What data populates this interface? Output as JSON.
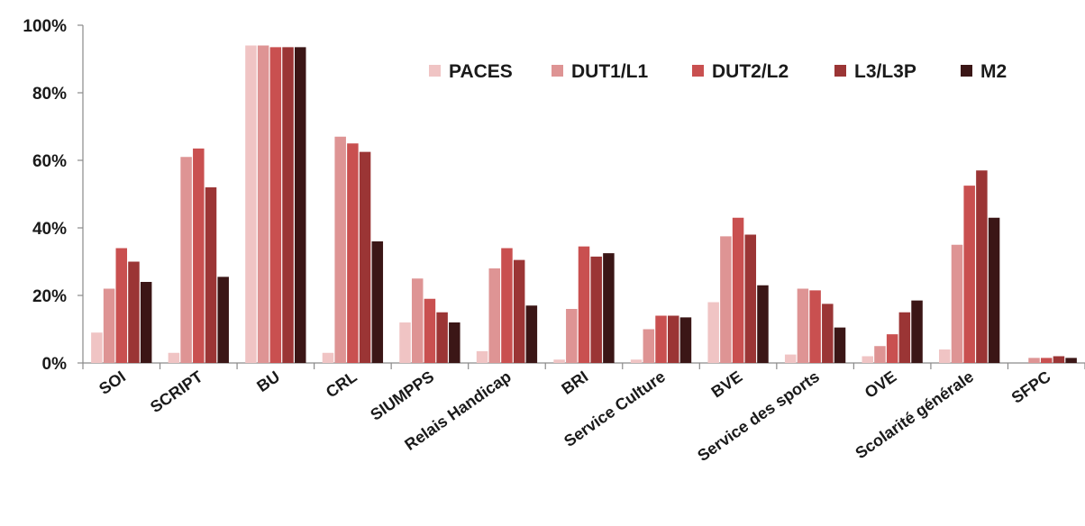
{
  "chart_data": {
    "type": "bar",
    "categories": [
      "SOI",
      "SCRIPT",
      "BU",
      "CRL",
      "SIUMPPS",
      "Relais Handicap",
      "BRI",
      "Service Culture",
      "BVE",
      "Service des sports",
      "OVE",
      "Scolarité générale",
      "SFPC"
    ],
    "series": [
      {
        "name": "PACES",
        "color": "#f0c4c4",
        "values": [
          9,
          3,
          94,
          3,
          12,
          3.5,
          1,
          1,
          18,
          2.5,
          2,
          4,
          0
        ]
      },
      {
        "name": "DUT1/L1",
        "color": "#de9494",
        "values": [
          22,
          61,
          94,
          67,
          25,
          28,
          16,
          10,
          37.5,
          22,
          5,
          35,
          1.5
        ]
      },
      {
        "name": "DUT2/L2",
        "color": "#c95050",
        "values": [
          34,
          63.5,
          93.5,
          65,
          19,
          34,
          34.5,
          14,
          43,
          21.5,
          8.5,
          52.5,
          1.5
        ]
      },
      {
        "name": "L3/L3P",
        "color": "#9b3535",
        "values": [
          30,
          52,
          93.5,
          62.5,
          15,
          30.5,
          31.5,
          14,
          38,
          17.5,
          15,
          57,
          2
        ]
      },
      {
        "name": "M2",
        "color": "#3b1616",
        "values": [
          24,
          25.5,
          93.5,
          36,
          12,
          17,
          32.5,
          13.5,
          23,
          10.5,
          18.5,
          43,
          1.5
        ]
      }
    ],
    "ylim": [
      0,
      100
    ],
    "yticks": [
      "0%",
      "20%",
      "40%",
      "60%",
      "80%",
      "100%"
    ],
    "legend_position": "top-right",
    "grid": false
  }
}
